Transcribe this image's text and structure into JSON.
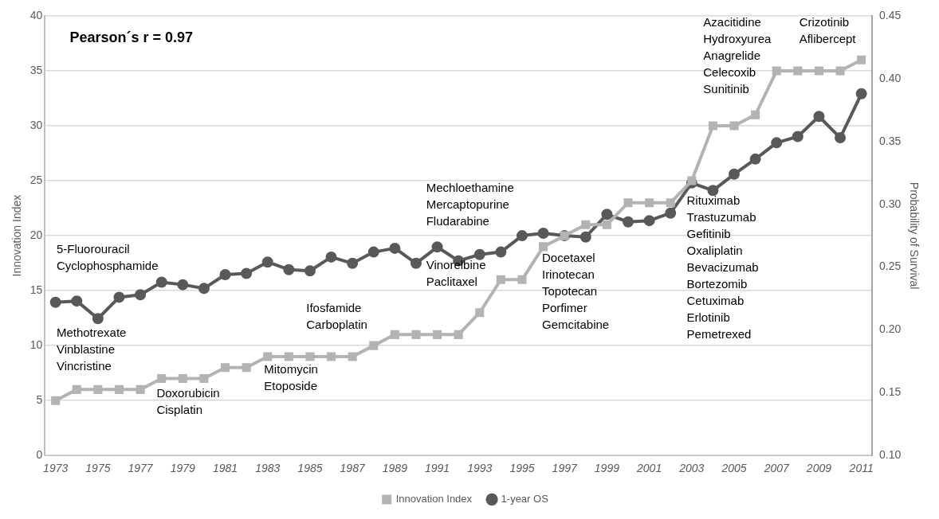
{
  "chart_data": {
    "type": "line",
    "categories": [
      "1973",
      null,
      "1975",
      null,
      "1977",
      null,
      "1979",
      null,
      "1981",
      null,
      "1983",
      null,
      "1985",
      null,
      "1987",
      null,
      "1989",
      null,
      "1991",
      null,
      "1993",
      null,
      "1995",
      null,
      "1997",
      null,
      "1999",
      null,
      "2001",
      null,
      "2003",
      null,
      "2005",
      null,
      "2007",
      null,
      "2009",
      null,
      "2011"
    ],
    "series": [
      {
        "name": "Innovation Index",
        "color": "#b3b3b3",
        "marker": "square",
        "values": [
          5,
          6,
          6,
          6,
          6,
          7,
          7,
          7,
          8,
          8,
          9,
          9,
          9,
          9,
          9,
          10,
          11,
          11,
          11,
          11,
          13,
          16,
          16,
          19,
          20,
          21,
          21,
          23,
          23,
          23,
          25,
          30,
          30,
          31,
          35,
          35,
          35,
          35,
          36
        ]
      },
      {
        "name": "1-year OS",
        "color": "#595959",
        "marker": "circle",
        "axis": "y2",
        "values": [
          0.222,
          0.223,
          0.209,
          0.226,
          0.228,
          0.238,
          0.236,
          0.233,
          0.244,
          0.245,
          0.254,
          0.248,
          0.247,
          0.258,
          0.253,
          0.262,
          0.265,
          0.253,
          0.266,
          0.255,
          0.26,
          0.262,
          0.275,
          0.277,
          0.275,
          0.274,
          0.292,
          0.286,
          0.287,
          0.293,
          0.317,
          0.311,
          0.324,
          0.336,
          0.349,
          0.354,
          0.37,
          0.353,
          0.388
        ]
      }
    ],
    "ylabel": "Innovation Index",
    "y2label": "Probability of Survival",
    "ylim": [
      0,
      40
    ],
    "yticks": [
      0,
      5,
      10,
      15,
      20,
      25,
      30,
      35,
      40
    ],
    "y2lim": [
      0.1,
      0.45
    ],
    "y2ticks": [
      {
        "value": 0.1,
        "label": "0.10"
      },
      {
        "value": 0.15,
        "label": "0.15"
      },
      {
        "value": 0.2,
        "label": "0.20"
      },
      {
        "value": 0.25,
        "label": "0.25"
      },
      {
        "value": 0.3,
        "label": "0.30"
      },
      {
        "value": 0.35,
        "label": "0.35"
      },
      {
        "value": 0.4,
        "label": "0.40"
      },
      {
        "value": 0.45,
        "label": "0.45"
      }
    ],
    "grid": "y",
    "legend": "bottom",
    "line_style": "solid",
    "annotations": [
      "Pearson´s r = 0.97",
      "5-Fluorouracil\nCyclophosphamide",
      "Methotrexate\nVinblastine\nVincristine",
      "Doxorubicin\nCisplatin",
      "Mitomycin\nEtoposide",
      "Ifosfamide\nCarboplatin",
      "Mechloethamine\nMercaptopurine\nFludarabine",
      "Vinorelbine\nPaclitaxel",
      "Docetaxel\nIrinotecan\nTopotecan\nPorfimer\nGemcitabine",
      "Rituximab\nTrastuzumab\nGefitinib\nOxaliplatin\nBevacizumab\nBortezomib\nCetuximab\nErlotinib\nPemetrexed",
      "Azacitidine\nHydroxyurea\nAnagrelide\nCelecoxib\nSunitinib",
      "Crizotinib\nAflibercept"
    ]
  }
}
